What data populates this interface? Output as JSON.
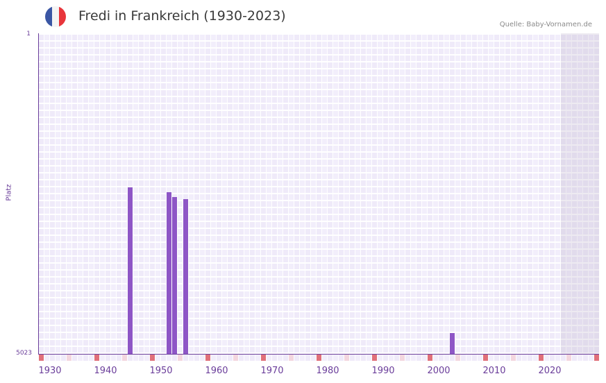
{
  "header": {
    "title": "Fredi in Frankreich (1930-2023)",
    "source": "Quelle: Baby-Vornamen.de",
    "flag_colors": [
      "#3a56a4",
      "#f4f4f4",
      "#e8353b"
    ]
  },
  "colors": {
    "bar": "#8e56c6",
    "axis": "#6a3d9a",
    "decade_marker": "#e0707a",
    "half_decade_marker": "#f3d6df",
    "grid_cell_a": "#efeaf9",
    "grid_cell_b": "#f2eefb",
    "future_shade": "#e3dfeb"
  },
  "chart_data": {
    "type": "bar",
    "title": "Fredi in Frankreich (1930-2023)",
    "xlabel": "",
    "ylabel": "Platz",
    "y_axis_inverted": true,
    "ylim": [
      5023,
      1
    ],
    "ytick_labels": [
      "1",
      "5023"
    ],
    "xlim": [
      1930,
      2030
    ],
    "xtick_labels": [
      "1930",
      "1940",
      "1950",
      "1960",
      "1970",
      "1980",
      "1990",
      "2000",
      "2010",
      "2020"
    ],
    "grid": true,
    "legend": null,
    "shaded_region": {
      "from": 2024,
      "to": 2030,
      "meaning": "future years"
    },
    "x": [
      1946,
      1953,
      1954,
      1956,
      2004
    ],
    "values": [
      2414,
      2490,
      2566,
      2599,
      4697
    ]
  },
  "axis": {
    "y_top": "1",
    "y_bottom": "5023",
    "y_label": "Platz",
    "x_labels": [
      "1930",
      "1940",
      "1950",
      "1960",
      "1970",
      "1980",
      "1990",
      "2000",
      "2010",
      "2020"
    ]
  }
}
